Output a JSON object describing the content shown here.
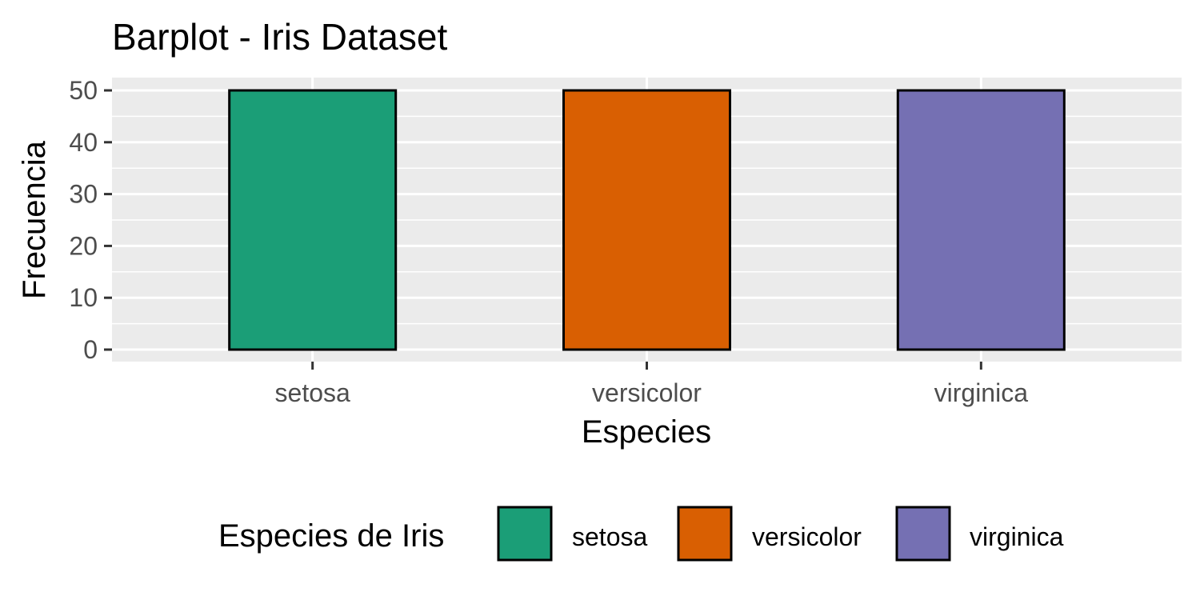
{
  "chart_data": {
    "type": "bar",
    "title": "Barplot - Iris Dataset",
    "xlabel": "Especies",
    "ylabel": "Frecuencia",
    "categories": [
      "setosa",
      "versicolor",
      "virginica"
    ],
    "values": [
      50,
      50,
      50
    ],
    "colors": [
      "#1b9e77",
      "#d95f02",
      "#7570b3"
    ],
    "bar_outline_color": "#000000",
    "ylim": [
      0,
      52.5
    ],
    "yticks": [
      0,
      10,
      20,
      30,
      40,
      50
    ],
    "grid": true,
    "panel_background": "#ebebeb",
    "legend": {
      "title": "Especies de Iris",
      "position": "bottom",
      "entries": [
        "setosa",
        "versicolor",
        "virginica"
      ]
    }
  }
}
